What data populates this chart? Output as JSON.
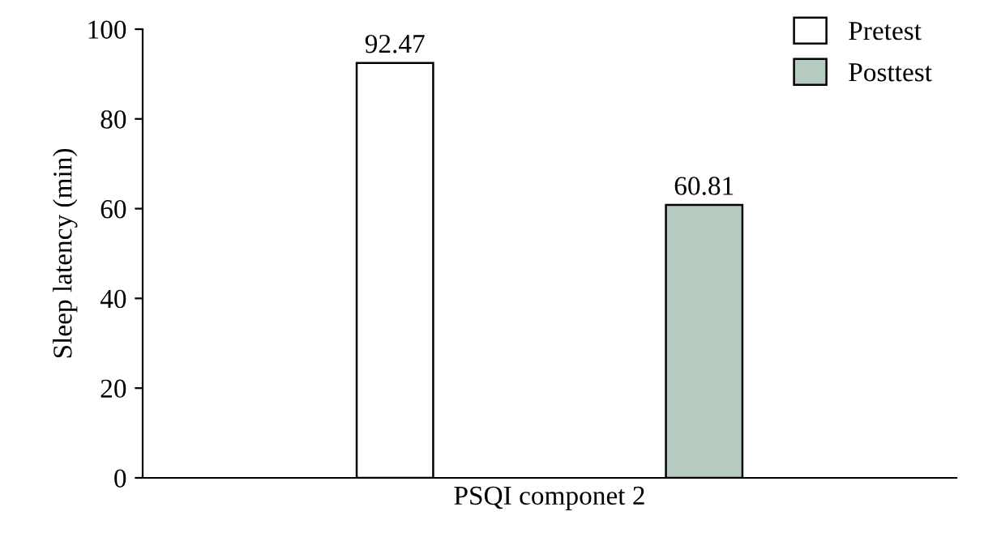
{
  "chart_data": {
    "type": "bar",
    "ylabel": "Sleep latency (min)",
    "categories": [
      "PSQI componet 2"
    ],
    "series": [
      {
        "name": "Pretest",
        "color": "#ffffff",
        "values": [
          92.47
        ]
      },
      {
        "name": "Posttest",
        "color": "#b5cbc0",
        "values": [
          60.81
        ]
      }
    ],
    "ylim": [
      0,
      100
    ],
    "yticks": [
      0,
      20,
      40,
      60,
      80,
      100
    ],
    "data_labels": true,
    "legend": "top right",
    "grid": false
  }
}
